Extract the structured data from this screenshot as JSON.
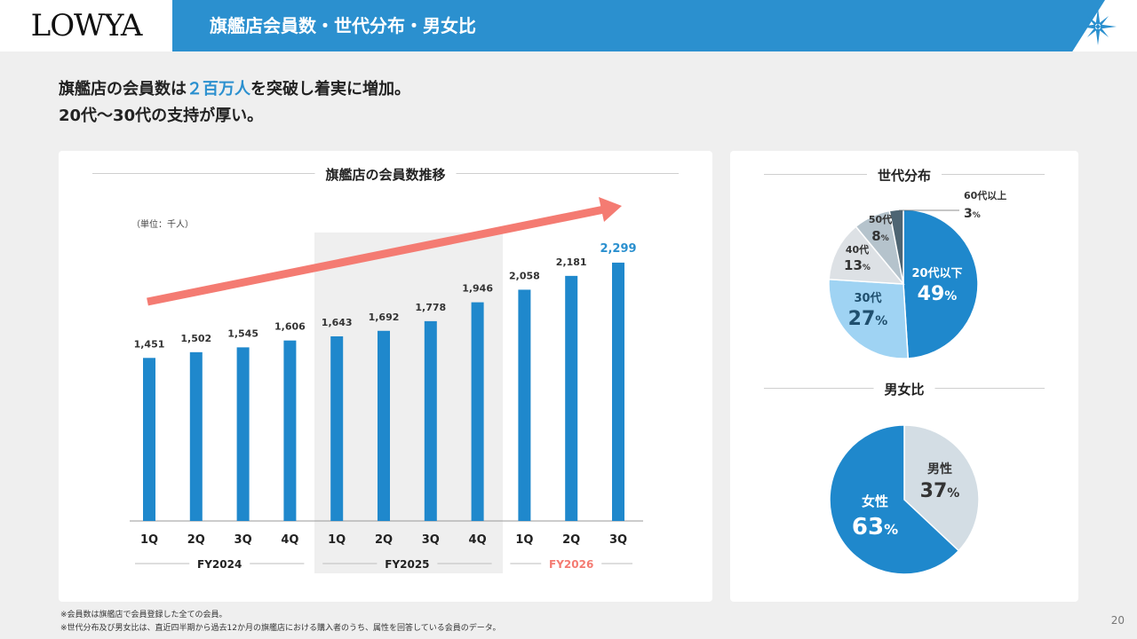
{
  "header": {
    "logo": "LOWYA",
    "title": "旗艦店会員数・世代分布・男女比"
  },
  "headline": {
    "line1_pre": "旗艦店の会員数は",
    "line1_highlight": "２百万人",
    "line1_post": "を突破し着実に増加。",
    "line2": "20代～30代の支持が厚い。"
  },
  "colors": {
    "accent": "#2b90cf",
    "bar": "#1f88cc",
    "arrow": "#f47b72",
    "fy2026": "#f47b72",
    "shade": "#efefef"
  },
  "members_chart": {
    "section_title": "旗艦店の会員数推移",
    "unit": "（単位：千人）",
    "fiscal_years": [
      {
        "label": "FY2024"
      },
      {
        "label": "FY2025"
      },
      {
        "label": "FY2026"
      }
    ]
  },
  "chart_data": [
    {
      "type": "bar",
      "title": "旗艦店の会員数推移",
      "unit": "（単位：千人）",
      "categories": [
        "1Q",
        "2Q",
        "3Q",
        "4Q",
        "1Q",
        "2Q",
        "3Q",
        "4Q",
        "1Q",
        "2Q",
        "3Q"
      ],
      "groups": [
        "FY2024",
        "FY2024",
        "FY2024",
        "FY2024",
        "FY2025",
        "FY2025",
        "FY2025",
        "FY2025",
        "FY2026",
        "FY2026",
        "FY2026"
      ],
      "values": [
        1451,
        1502,
        1545,
        1606,
        1643,
        1692,
        1778,
        1946,
        2058,
        2181,
        2299
      ],
      "value_labels": [
        "1,451",
        "1,502",
        "1,545",
        "1,606",
        "1,643",
        "1,692",
        "1,778",
        "1,946",
        "2,058",
        "2,181",
        "2,299"
      ],
      "ylim": [
        0,
        2400
      ]
    },
    {
      "type": "pie",
      "title": "世代分布",
      "slices": [
        {
          "name": "20代以下",
          "value": 49,
          "pct": "49",
          "color": "#1f88cc"
        },
        {
          "name": "30代",
          "value": 27,
          "pct": "27",
          "color": "#9fd3f3"
        },
        {
          "name": "40代",
          "value": 13,
          "pct": "13",
          "color": "#dde1e5"
        },
        {
          "name": "50代",
          "value": 8,
          "pct": "8",
          "color": "#b5c3cc"
        },
        {
          "name": "60代以上",
          "value": 3,
          "pct": "3",
          "color": "#4e6573"
        }
      ]
    },
    {
      "type": "pie",
      "title": "男女比",
      "slices": [
        {
          "name": "男性",
          "value": 37,
          "pct": "37",
          "color": "#d3dde4"
        },
        {
          "name": "女性",
          "value": 63,
          "pct": "63",
          "color": "#1f88cc"
        }
      ]
    }
  ],
  "pct_sign": "%",
  "footnotes": [
    "※会員数は旗艦店で会員登録した全ての会員。",
    "※世代分布及び男女比は、直近四半期から過去12か月の旗艦店における購入者のうち、属性を回答している会員のデータ。"
  ],
  "page_number": "20"
}
